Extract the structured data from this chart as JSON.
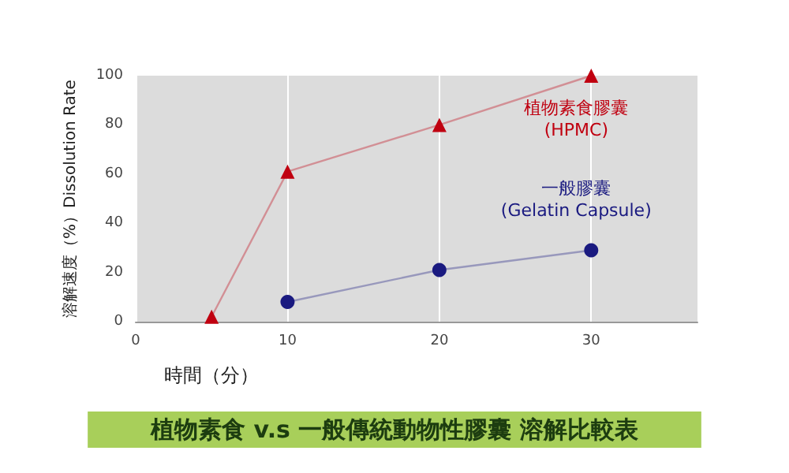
{
  "chart_data": {
    "type": "line",
    "title": "植物素食 v.s 一般傳統動物性膠囊 溶解比較表",
    "xlabel": "時間（分）",
    "ylabel": "溶解速度（%）Dissolution Rate",
    "xlim": [
      0,
      37
    ],
    "xticks": [
      0,
      10,
      20,
      30
    ],
    "ylim": [
      0,
      100
    ],
    "yticks": [
      0,
      20,
      40,
      60,
      80,
      100
    ],
    "grid": "x",
    "legend": false,
    "series": [
      {
        "name": "植物素食膠囊\n(HPMC)",
        "color": "#c00010",
        "marker": "triangle",
        "x": [
          5,
          10,
          20,
          30
        ],
        "values": [
          2,
          61,
          80,
          100
        ]
      },
      {
        "name": "一般膠囊\n(Gelatin Capsule)",
        "color": "#1a1a80",
        "marker": "circle",
        "x": [
          10,
          20,
          30
        ],
        "values": [
          8,
          21,
          29
        ]
      }
    ]
  }
}
